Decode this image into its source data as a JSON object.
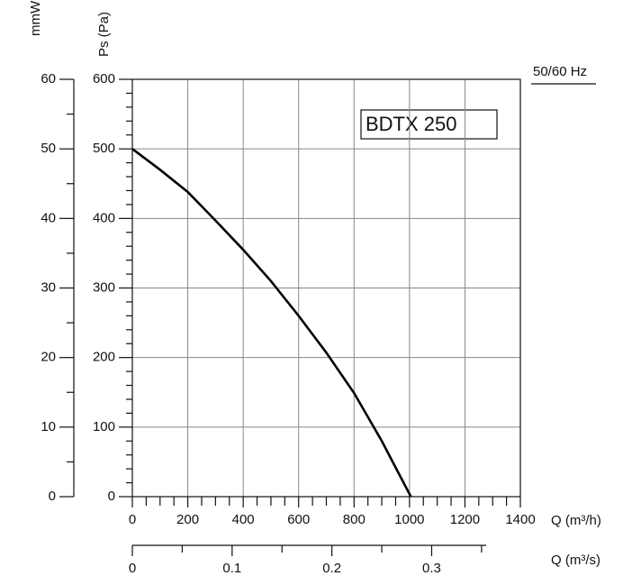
{
  "chart_data": {
    "type": "line",
    "y_label": "Ps (Pa)",
    "y2_label": "mmWG",
    "x_label": "Q (m³/h)",
    "x2_label": "Q (m³/s)",
    "frequency_label": "50/60 Hz",
    "series": [
      {
        "name": "BDTX 250",
        "color": "#000000",
        "x": [
          0,
          100,
          200,
          300,
          400,
          500,
          600,
          700,
          800,
          900,
          1005
        ],
        "values": [
          500,
          470,
          438,
          397,
          355,
          310,
          260,
          207,
          149,
          80,
          0
        ]
      }
    ],
    "xlim": [
      0,
      1400
    ],
    "xticks": [
      0,
      200,
      400,
      600,
      800,
      1000,
      1200,
      1400
    ],
    "ylim": [
      0,
      600
    ],
    "yticks": [
      0,
      100,
      200,
      300,
      400,
      500,
      600
    ],
    "y2lim": [
      0,
      60
    ],
    "y2ticks": [
      0,
      10,
      20,
      30,
      40,
      50,
      60
    ],
    "x2lim": [
      0,
      0.3889
    ],
    "x2ticks": [
      0,
      0.1,
      0.2,
      0.3
    ],
    "grid": true
  }
}
